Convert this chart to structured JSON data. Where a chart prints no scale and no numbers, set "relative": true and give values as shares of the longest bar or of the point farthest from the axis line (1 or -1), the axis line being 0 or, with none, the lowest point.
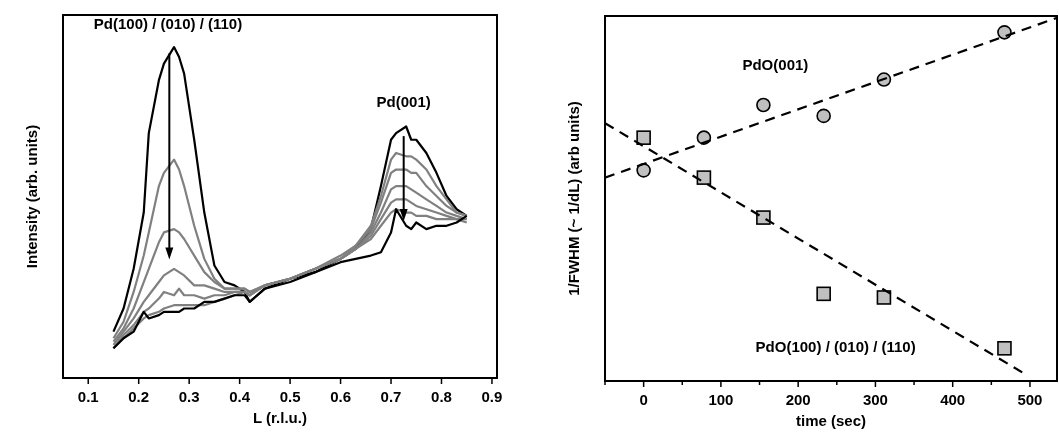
{
  "chart_data": [
    {
      "type": "line",
      "relative": true,
      "xlabel": "L (r.l.u.)",
      "ylabel": "Intensity (arb. units)",
      "xlim": [
        0.05,
        0.91
      ],
      "xticks": [
        0.1,
        0.2,
        0.3,
        0.4,
        0.5,
        0.6,
        0.7,
        0.8,
        0.9
      ],
      "x": [
        0.15,
        0.17,
        0.19,
        0.21,
        0.22,
        0.24,
        0.25,
        0.27,
        0.28,
        0.29,
        0.31,
        0.33,
        0.35,
        0.37,
        0.39,
        0.41,
        0.42,
        0.45,
        0.5,
        0.55,
        0.6,
        0.63,
        0.66,
        0.68,
        0.7,
        0.71,
        0.73,
        0.74,
        0.75,
        0.77,
        0.79,
        0.81,
        0.83,
        0.85
      ],
      "annotations": [
        "Pd(100) / (010) / (110)",
        "Pd(001)"
      ],
      "series": [
        {
          "color": "#000000",
          "values": [
            0.14,
            0.21,
            0.33,
            0.5,
            0.74,
            0.9,
            0.95,
            1.0,
            0.97,
            0.92,
            0.72,
            0.5,
            0.34,
            0.29,
            0.28,
            0.26,
            0.23,
            0.27,
            0.3,
            0.32,
            0.36,
            0.39,
            0.45,
            0.58,
            0.72,
            0.74,
            0.76,
            0.72,
            0.72,
            0.68,
            0.62,
            0.55,
            0.51,
            0.49
          ]
        },
        {
          "color": "#808080",
          "values": [
            0.12,
            0.17,
            0.26,
            0.37,
            0.44,
            0.58,
            0.62,
            0.66,
            0.63,
            0.58,
            0.46,
            0.36,
            0.3,
            0.27,
            0.27,
            0.27,
            0.26,
            0.28,
            0.3,
            0.33,
            0.37,
            0.4,
            0.46,
            0.55,
            0.66,
            0.68,
            0.67,
            0.67,
            0.66,
            0.63,
            0.58,
            0.54,
            0.5,
            0.49
          ]
        },
        {
          "color": "#808080",
          "values": [
            0.11,
            0.15,
            0.21,
            0.29,
            0.33,
            0.41,
            0.44,
            0.45,
            0.44,
            0.42,
            0.37,
            0.32,
            0.29,
            0.27,
            0.27,
            0.27,
            0.26,
            0.28,
            0.3,
            0.33,
            0.36,
            0.4,
            0.45,
            0.53,
            0.62,
            0.63,
            0.63,
            0.62,
            0.62,
            0.58,
            0.55,
            0.52,
            0.5,
            0.49
          ]
        },
        {
          "color": "#808080",
          "values": [
            0.1,
            0.14,
            0.18,
            0.23,
            0.25,
            0.29,
            0.31,
            0.33,
            0.32,
            0.31,
            0.28,
            0.28,
            0.27,
            0.26,
            0.26,
            0.26,
            0.25,
            0.28,
            0.3,
            0.33,
            0.36,
            0.39,
            0.44,
            0.5,
            0.57,
            0.58,
            0.58,
            0.57,
            0.56,
            0.54,
            0.52,
            0.5,
            0.49,
            0.48
          ]
        },
        {
          "color": "#808080",
          "values": [
            0.09,
            0.13,
            0.16,
            0.2,
            0.21,
            0.24,
            0.26,
            0.25,
            0.27,
            0.25,
            0.25,
            0.24,
            0.25,
            0.25,
            0.26,
            0.26,
            0.25,
            0.28,
            0.3,
            0.33,
            0.36,
            0.39,
            0.43,
            0.48,
            0.53,
            0.54,
            0.54,
            0.53,
            0.52,
            0.51,
            0.5,
            0.49,
            0.48,
            0.48
          ]
        },
        {
          "color": "#808080",
          "values": [
            0.09,
            0.12,
            0.15,
            0.18,
            0.19,
            0.2,
            0.21,
            0.22,
            0.22,
            0.22,
            0.22,
            0.22,
            0.23,
            0.24,
            0.25,
            0.26,
            0.25,
            0.28,
            0.3,
            0.33,
            0.36,
            0.39,
            0.42,
            0.46,
            0.5,
            0.51,
            0.5,
            0.5,
            0.49,
            0.49,
            0.48,
            0.48,
            0.48,
            0.47
          ]
        },
        {
          "color": "#000000",
          "values": [
            0.09,
            0.12,
            0.14,
            0.2,
            0.18,
            0.19,
            0.2,
            0.2,
            0.2,
            0.21,
            0.21,
            0.23,
            0.23,
            0.24,
            0.25,
            0.25,
            0.23,
            0.27,
            0.29,
            0.32,
            0.35,
            0.36,
            0.37,
            0.38,
            0.44,
            0.51,
            0.46,
            0.45,
            0.47,
            0.45,
            0.46,
            0.46,
            0.47,
            0.49
          ]
        }
      ]
    },
    {
      "type": "scatter",
      "relative": true,
      "xlabel": "time (sec)",
      "ylabel": "1/FWHM (~ 1/dL) (arb units)",
      "line_style": "dashed",
      "xlim": [
        -50,
        535
      ],
      "xticks": [
        {
          "value": -50,
          "label": null
        },
        0,
        {
          "value": 50,
          "label": null
        },
        100,
        {
          "value": 150,
          "label": null
        },
        200,
        {
          "value": 250,
          "label": null
        },
        300,
        {
          "value": 350,
          "label": null
        },
        400,
        {
          "value": 450,
          "label": null
        },
        500
      ],
      "series": [
        {
          "name": "PdO(001)",
          "marker": "circle",
          "color": "#c0c0c0",
          "x": [
            0,
            78,
            155,
            233,
            311,
            467
          ],
          "values": [
            0.58,
            0.67,
            0.76,
            0.73,
            0.83,
            0.96
          ]
        },
        {
          "name": "PdO(100) / (010) / (110)",
          "marker": "square",
          "color": "#c0c0c0",
          "x": [
            0,
            78,
            155,
            233,
            311,
            467
          ],
          "values": [
            0.67,
            0.56,
            0.45,
            0.24,
            0.23,
            0.09
          ]
        },
        {
          "type": "line",
          "color": "#000000",
          "x": [
            -50,
            535
          ],
          "values": [
            0.56,
            1.0
          ]
        },
        {
          "type": "line",
          "color": "#000000",
          "x": [
            -50,
            493
          ],
          "values": [
            0.71,
            0.02
          ]
        }
      ]
    }
  ]
}
